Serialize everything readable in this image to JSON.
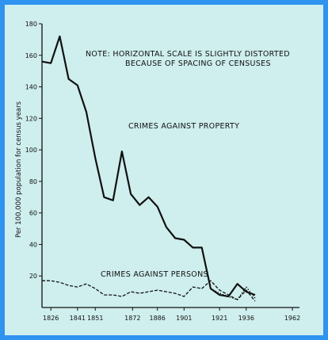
{
  "chart_data": {
    "type": "line",
    "title": "",
    "note_lines": [
      "NOTE: HORIZONTAL SCALE IS SLIGHTLY DISTORTED",
      "BECAUSE OF SPACING OF CENSUSES"
    ],
    "ylabel": "Per 100,000 population for census years",
    "xlabel": "",
    "ylim": [
      0,
      180
    ],
    "yticks": [
      20,
      40,
      60,
      80,
      100,
      120,
      140,
      160,
      180
    ],
    "xticks": [
      1826,
      1841,
      1851,
      1872,
      1886,
      1901,
      1921,
      1936,
      1962
    ],
    "grid": false,
    "series": [
      {
        "name": "CRIMES AGAINST PROPERTY",
        "style": "solid",
        "points": [
          [
            1821,
            156
          ],
          [
            1826,
            155
          ],
          [
            1831,
            172
          ],
          [
            1836,
            145
          ],
          [
            1841,
            141
          ],
          [
            1846,
            124
          ],
          [
            1851,
            95
          ],
          [
            1856,
            70
          ],
          [
            1861,
            68
          ],
          [
            1866,
            99
          ],
          [
            1871,
            72
          ],
          [
            1876,
            65
          ],
          [
            1881,
            70
          ],
          [
            1886,
            64
          ],
          [
            1891,
            51
          ],
          [
            1896,
            44
          ],
          [
            1901,
            43
          ],
          [
            1906,
            38
          ],
          [
            1911,
            38
          ],
          [
            1916,
            12
          ],
          [
            1921,
            8
          ],
          [
            1926,
            7
          ],
          [
            1931,
            15
          ],
          [
            1936,
            10
          ],
          [
            1941,
            8
          ]
        ]
      },
      {
        "name": "CRIMES AGAINST PERSONS",
        "style": "dashed",
        "points": [
          [
            1821,
            17
          ],
          [
            1826,
            17
          ],
          [
            1831,
            16
          ],
          [
            1836,
            14
          ],
          [
            1841,
            13
          ],
          [
            1846,
            15
          ],
          [
            1851,
            12
          ],
          [
            1856,
            8
          ],
          [
            1861,
            8
          ],
          [
            1866,
            7
          ],
          [
            1871,
            10
          ],
          [
            1876,
            9
          ],
          [
            1881,
            10
          ],
          [
            1886,
            11
          ],
          [
            1891,
            10
          ],
          [
            1896,
            9
          ],
          [
            1901,
            7
          ],
          [
            1906,
            13
          ],
          [
            1911,
            12
          ],
          [
            1916,
            17
          ],
          [
            1921,
            11
          ],
          [
            1926,
            8
          ],
          [
            1931,
            5
          ],
          [
            1936,
            11
          ],
          [
            1941,
            4
          ]
        ]
      },
      {
        "name": "",
        "style": "dotted",
        "points": [
          [
            1916,
            12
          ],
          [
            1921,
            9
          ],
          [
            1926,
            7
          ],
          [
            1931,
            5
          ],
          [
            1936,
            13
          ],
          [
            1941,
            6
          ]
        ]
      }
    ],
    "labels": {
      "property": "CRIMES AGAINST PROPERTY",
      "persons": "CRIMES AGAINST PERSONS"
    },
    "colors": {
      "frame": "#2f93f0",
      "background": "#cfeeee",
      "ink": "#111111"
    }
  }
}
